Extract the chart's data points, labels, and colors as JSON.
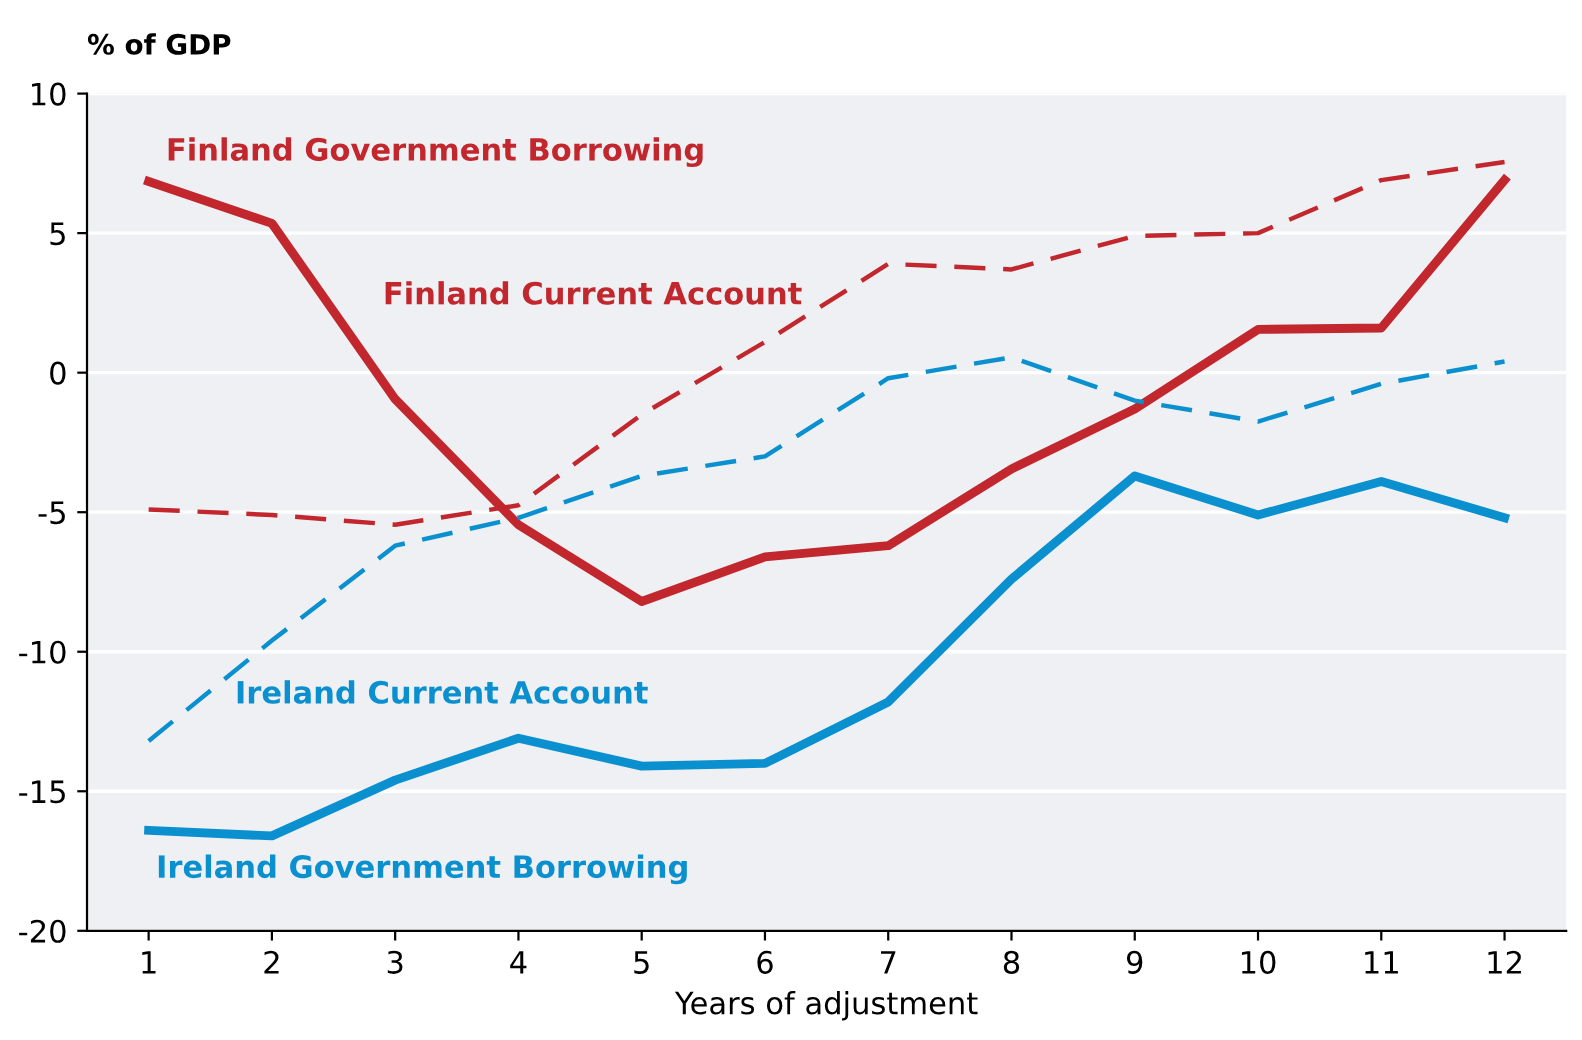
{
  "chart_data": {
    "type": "line",
    "ylabel": "% of GDP",
    "xlabel": "Years of adjustment",
    "categories": [
      "1",
      "2",
      "3",
      "4",
      "5",
      "6",
      "7",
      "8",
      "9",
      "10",
      "11",
      "12"
    ],
    "series": [
      {
        "name": "Finland Government Borrowing",
        "color": "#c1272d",
        "line_style": "solid",
        "values": [
          6.85,
          5.35,
          -0.95,
          -5.45,
          -8.2,
          -6.6,
          -6.2,
          -3.45,
          -1.3,
          1.55,
          1.6,
          6.9
        ]
      },
      {
        "name": "Finland Current Account",
        "color": "#c1272d",
        "line_style": "dashed",
        "values": [
          -4.9,
          -5.1,
          -5.45,
          -4.75,
          -1.5,
          1.1,
          3.9,
          3.7,
          4.9,
          5.0,
          6.9,
          7.55
        ]
      },
      {
        "name": "Ireland Current Account",
        "color": "#0a8fcf",
        "line_style": "dashed",
        "values": [
          -13.2,
          -9.6,
          -6.2,
          -5.2,
          -3.7,
          -3.0,
          -0.2,
          0.55,
          -1.0,
          -1.75,
          -0.4,
          0.4
        ]
      },
      {
        "name": "Ireland Government Borrowing",
        "color": "#0a8fcf",
        "line_style": "solid",
        "values": [
          -16.4,
          -16.6,
          -14.6,
          -13.1,
          -14.1,
          -14.0,
          -11.8,
          -7.4,
          -3.7,
          -5.1,
          -3.9,
          -5.2
        ]
      }
    ],
    "ylim": [
      -20,
      10
    ],
    "yticks": [
      -20,
      -15,
      -10,
      -5,
      0,
      5,
      10
    ],
    "grid": "y",
    "marker": "none"
  }
}
